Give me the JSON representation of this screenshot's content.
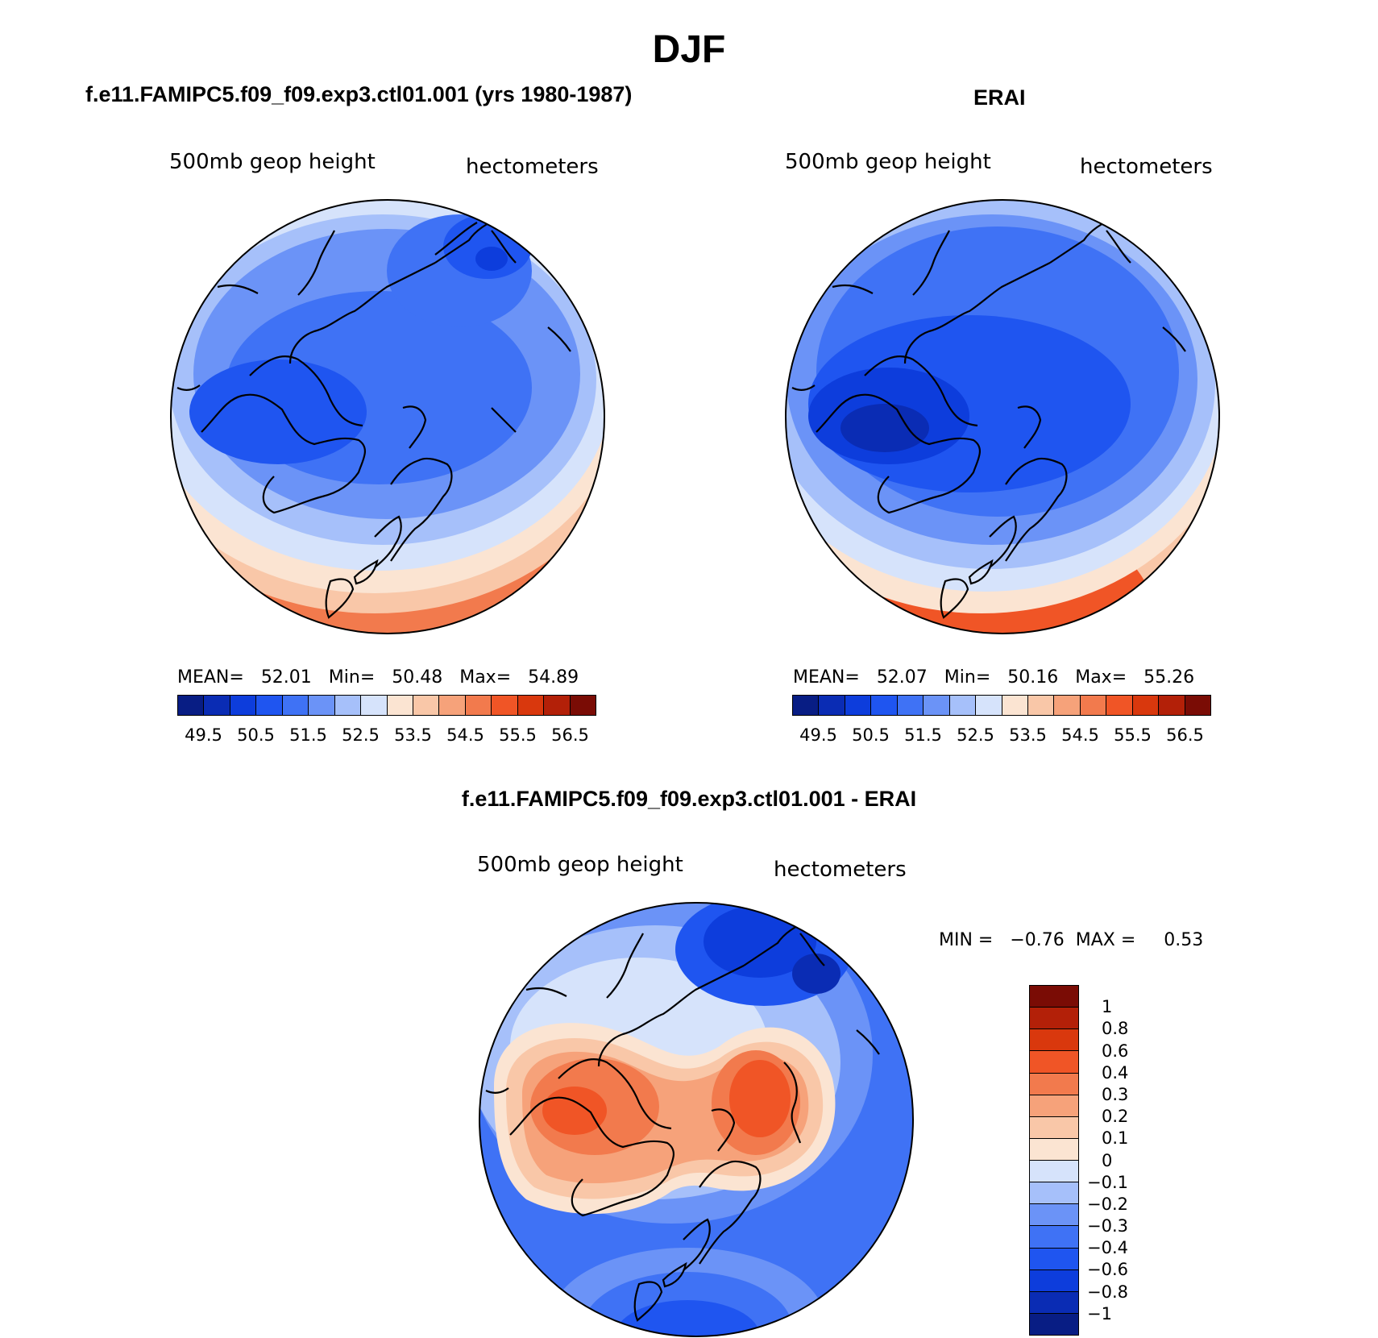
{
  "figure": {
    "title": "DJF"
  },
  "panels": [
    {
      "title": "f.e11.FAMIPC5.f09_f09.exp3.ctl01.001 (yrs 1980-1987)",
      "variable": "500mb  geop  height",
      "units": "hectometers",
      "stats": {
        "mean_label": "MEAN=",
        "mean": "52.01",
        "min_label": "Min=",
        "min": "50.48",
        "max_label": "Max=",
        "max": "54.89"
      },
      "colorbar_ticks": [
        "49.5",
        "50.5",
        "51.5",
        "52.5",
        "53.5",
        "54.5",
        "55.5",
        "56.5"
      ]
    },
    {
      "title": "ERAI",
      "variable": "500mb  geop  height",
      "units": "hectometers",
      "stats": {
        "mean_label": "MEAN=",
        "mean": "52.07",
        "min_label": "Min=",
        "min": "50.16",
        "max_label": "Max=",
        "max": "55.26"
      },
      "colorbar_ticks": [
        "49.5",
        "50.5",
        "51.5",
        "52.5",
        "53.5",
        "54.5",
        "55.5",
        "56.5"
      ]
    },
    {
      "title": "f.e11.FAMIPC5.f09_f09.exp3.ctl01.001 - ERAI",
      "variable": "500mb  geop  height",
      "units": "hectometers",
      "stats": {
        "min_label": "MIN =",
        "min": "−0.76",
        "max_label": "MAX =",
        "max": "0.53"
      },
      "colorbar_ticks": [
        "1",
        "0.8",
        "0.6",
        "0.4",
        "0.3",
        "0.2",
        "0.1",
        "0",
        "−0.1",
        "−0.2",
        "−0.3",
        "−0.4",
        "−0.6",
        "−0.8",
        "−1"
      ]
    }
  ],
  "colors": {
    "abs_scale": [
      "#081d84",
      "#0a2cb4",
      "#0d3ddc",
      "#1f55f0",
      "#3f72f5",
      "#6b93f7",
      "#a6c0fa",
      "#d6e3fb",
      "#fbe4d2",
      "#f9c7a8",
      "#f6a27a",
      "#f27a4d",
      "#f05526",
      "#d9380d",
      "#b32008",
      "#7a0c05"
    ],
    "diff_scale": [
      "#7a0c05",
      "#b32008",
      "#d9380d",
      "#f05526",
      "#f27a4d",
      "#f6a27a",
      "#f9c7a8",
      "#fbe4d2",
      "#d6e3fb",
      "#a6c0fa",
      "#6b93f7",
      "#3f72f5",
      "#1f55f0",
      "#0d3ddc",
      "#0a2cb4",
      "#081d84"
    ]
  }
}
